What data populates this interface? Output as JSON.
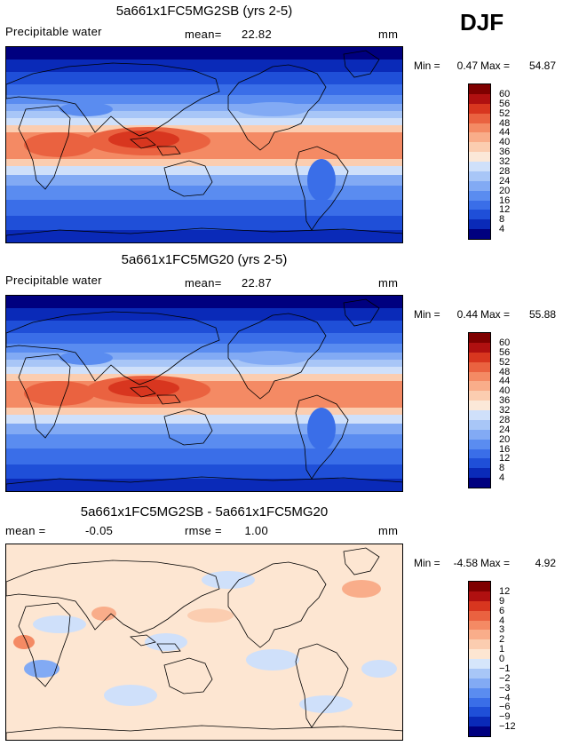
{
  "season": "DJF",
  "units_label": "mm",
  "panels": [
    {
      "title": "5a661x1FC5MG2SB (yrs 2-5)",
      "left_label": "Precipitable water",
      "stat_label": "mean=",
      "stat_value": "22.82",
      "min_label": "Min =",
      "min_value": "0.47",
      "max_label": "Max =",
      "max_value": "54.87"
    },
    {
      "title": "5a661x1FC5MG20 (yrs 2-5)",
      "left_label": "Precipitable water",
      "stat_label": "mean=",
      "stat_value": "22.87",
      "min_label": "Min =",
      "min_value": "0.44",
      "max_label": "Max =",
      "max_value": "55.88"
    },
    {
      "title": "5a661x1FC5MG2SB - 5a661x1FC5MG20",
      "left_label": "mean =",
      "left_value": "-0.05",
      "stat_label": "rmse =",
      "stat_value": "1.00",
      "min_label": "Min =",
      "min_value": "-4.58",
      "max_label": "Max =",
      "max_value": "4.92"
    }
  ],
  "chart_data": [
    {
      "type": "heatmap",
      "title": "5a661x1FC5MG2SB (yrs 2-5)",
      "variable": "Precipitable water",
      "units": "mm",
      "mean": 22.82,
      "min": 0.47,
      "max": 54.87,
      "colorbar_levels": [
        4,
        8,
        12,
        16,
        20,
        24,
        28,
        32,
        36,
        40,
        44,
        48,
        52,
        56,
        60
      ],
      "colorbar_colors": [
        "#00007f",
        "#0a2ab8",
        "#1f4fd8",
        "#3a6ee8",
        "#5a8cf0",
        "#82aaf4",
        "#a8c6f7",
        "#cfe0fa",
        "#fbe8d8",
        "#fbcdb0",
        "#f9ad8a",
        "#f48a64",
        "#ea6240",
        "#d8361f",
        "#b01010",
        "#7f0000"
      ]
    },
    {
      "type": "heatmap",
      "title": "5a661x1FC5MG20 (yrs 2-5)",
      "variable": "Precipitable water",
      "units": "mm",
      "mean": 22.87,
      "min": 0.44,
      "max": 55.88,
      "colorbar_levels": [
        4,
        8,
        12,
        16,
        20,
        24,
        28,
        32,
        36,
        40,
        44,
        48,
        52,
        56,
        60
      ],
      "colorbar_colors": [
        "#00007f",
        "#0a2ab8",
        "#1f4fd8",
        "#3a6ee8",
        "#5a8cf0",
        "#82aaf4",
        "#a8c6f7",
        "#cfe0fa",
        "#fbe8d8",
        "#fbcdb0",
        "#f9ad8a",
        "#f48a64",
        "#ea6240",
        "#d8361f",
        "#b01010",
        "#7f0000"
      ]
    },
    {
      "type": "heatmap",
      "title": "5a661x1FC5MG2SB - 5a661x1FC5MG20",
      "units": "mm",
      "mean": -0.05,
      "rmse": 1.0,
      "min": -4.58,
      "max": 4.92,
      "colorbar_levels": [
        "-12",
        "-9",
        "-6",
        "-4",
        "-3",
        "-2",
        "-1",
        "0",
        "1",
        "2",
        "3",
        "4",
        "6",
        "9",
        "12"
      ],
      "colorbar_colors": [
        "#00007f",
        "#0a2ab8",
        "#1f4fd8",
        "#3a6ee8",
        "#5a8cf0",
        "#82aaf4",
        "#a8c6f7",
        "#d6e6fb",
        "#fde6d2",
        "#fbcdb0",
        "#f9ad8a",
        "#f48a64",
        "#ea6240",
        "#d8361f",
        "#b01010",
        "#7f0000"
      ]
    }
  ]
}
